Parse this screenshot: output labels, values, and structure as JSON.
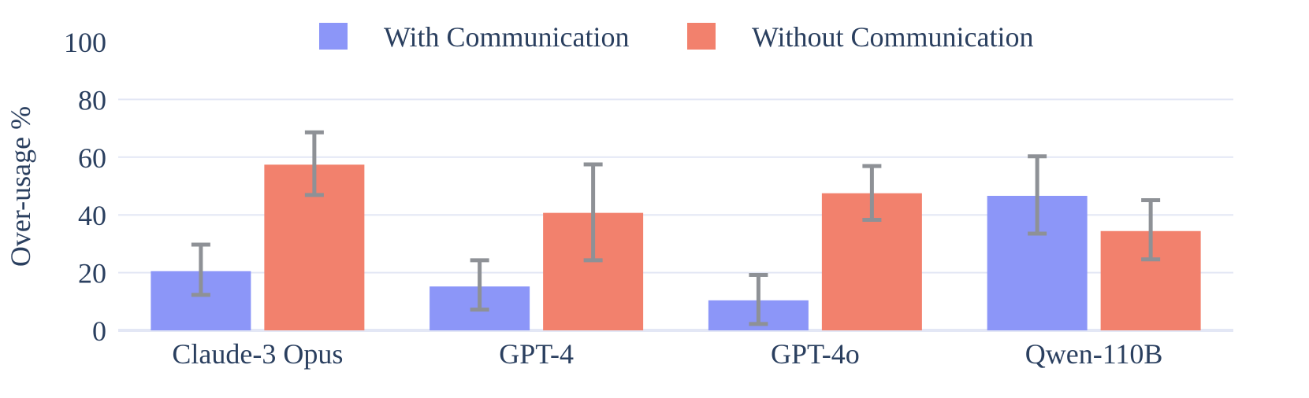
{
  "chart_data": {
    "type": "bar",
    "title": "",
    "xlabel": "",
    "ylabel": "Over-usage %",
    "ylim": [
      0,
      100
    ],
    "yticks": [
      0,
      20,
      40,
      60,
      80,
      100
    ],
    "grid": true,
    "legend_position": "top",
    "categories": [
      "Claude-3 Opus",
      "GPT-4",
      "GPT-4o",
      "Qwen-110B"
    ],
    "series": [
      {
        "name": "With Communication",
        "color": "#8c96f8",
        "values": [
          20.5,
          15.2,
          10.4,
          46.6
        ],
        "error_low": [
          12.3,
          7.2,
          2.2,
          33.5
        ],
        "error_high": [
          29.7,
          24.3,
          19.2,
          60.3
        ]
      },
      {
        "name": "Without Communication",
        "color": "#f2816d",
        "values": [
          57.4,
          40.7,
          47.5,
          34.4
        ],
        "error_low": [
          46.9,
          24.3,
          38.3,
          24.6
        ],
        "error_high": [
          68.6,
          57.5,
          56.9,
          45.1
        ]
      }
    ],
    "errorbar_color": "#8e9196",
    "gridline_color": "#e3e7f5",
    "axis_text_color": "#2a3f5f"
  }
}
